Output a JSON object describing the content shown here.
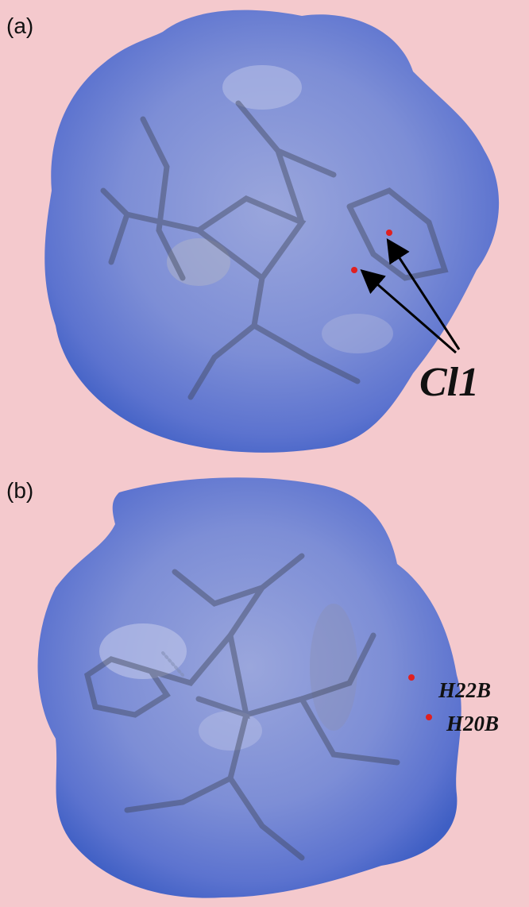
{
  "panels": [
    {
      "label": "(a)",
      "annotations": [
        "Cl1"
      ]
    },
    {
      "label": "(b)",
      "annotations": [
        "H22B",
        "H20B"
      ]
    }
  ]
}
